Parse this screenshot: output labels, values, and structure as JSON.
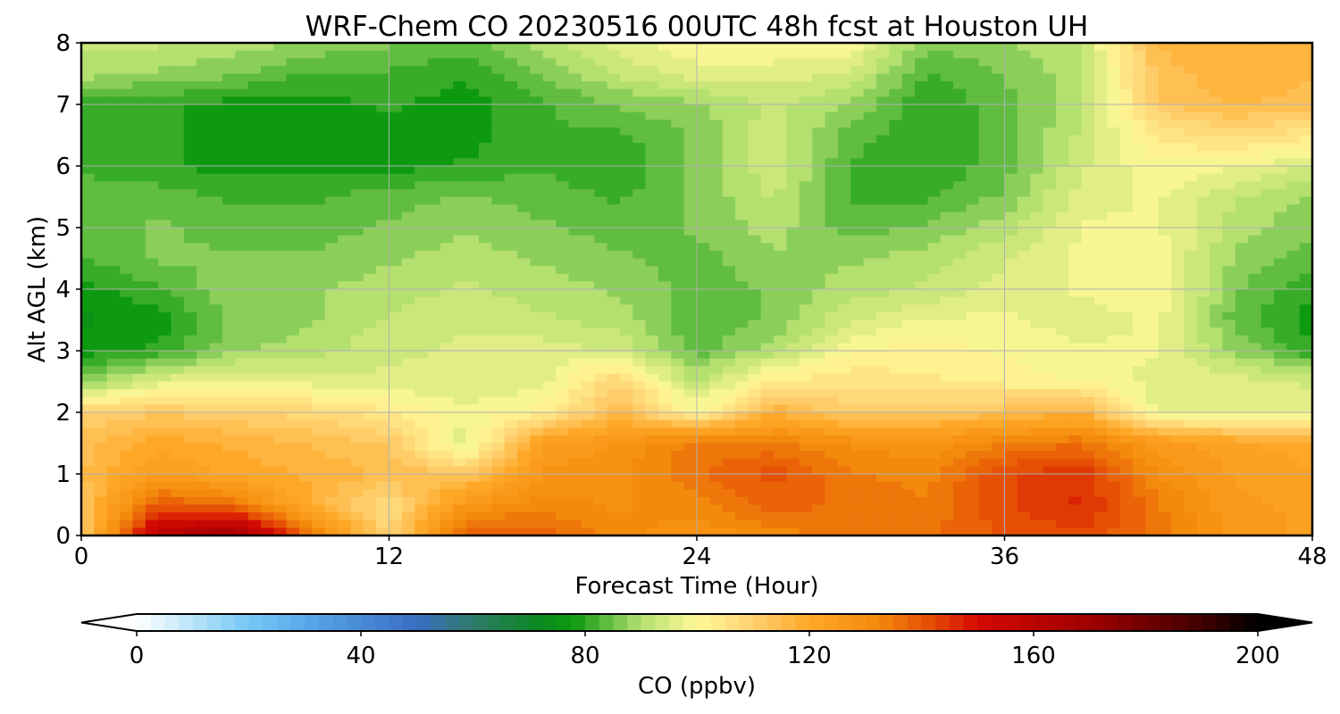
{
  "chart_data": {
    "type": "heatmap",
    "title": "WRF-Chem CO  20230516 00UTC 48h fcst at Houston UH",
    "xlabel": "Forecast Time (Hour)",
    "ylabel": "Alt AGL (km)",
    "xlim": [
      0,
      48
    ],
    "ylim": [
      0,
      8
    ],
    "x_ticks": [
      0,
      12,
      24,
      36,
      48
    ],
    "y_ticks": [
      0,
      1,
      2,
      3,
      4,
      5,
      6,
      7,
      8
    ],
    "grid": true,
    "colorbar": {
      "label": "CO  (ppbv)",
      "range": [
        0,
        200
      ],
      "ticks": [
        0,
        40,
        80,
        120,
        160,
        200
      ],
      "extend": "both",
      "stops": [
        {
          "value": 0,
          "color": "#ffffff"
        },
        {
          "value": 20,
          "color": "#74c8f5"
        },
        {
          "value": 30,
          "color": "#5aa8ea"
        },
        {
          "value": 50,
          "color": "#3a6ec4"
        },
        {
          "value": 60,
          "color": "#2e7a6a"
        },
        {
          "value": 72,
          "color": "#0a8a1e"
        },
        {
          "value": 78,
          "color": "#0e9a10"
        },
        {
          "value": 90,
          "color": "#b4e070"
        },
        {
          "value": 100,
          "color": "#fff898"
        },
        {
          "value": 110,
          "color": "#ffd070"
        },
        {
          "value": 120,
          "color": "#ffa828"
        },
        {
          "value": 132,
          "color": "#f48a0c"
        },
        {
          "value": 142,
          "color": "#e44a04"
        },
        {
          "value": 150,
          "color": "#d40a04"
        },
        {
          "value": 170,
          "color": "#a00000"
        },
        {
          "value": 190,
          "color": "#400000"
        },
        {
          "value": 200,
          "color": "#000000"
        }
      ]
    },
    "hours": [
      0,
      3,
      6,
      9,
      12,
      15,
      18,
      21,
      24,
      27,
      30,
      33,
      36,
      39,
      42,
      45,
      48
    ],
    "altitudes_km": [
      0,
      0.5,
      1,
      1.5,
      2,
      2.5,
      3,
      3.5,
      4,
      4.5,
      5,
      5.5,
      6,
      6.5,
      7,
      7.5,
      8
    ],
    "co_ppbv": [
      [
        110,
        160,
        170,
        135,
        108,
        140,
        138,
        132,
        128,
        132,
        135,
        136,
        140,
        142,
        135,
        126,
        124
      ],
      [
        112,
        140,
        135,
        118,
        106,
        128,
        132,
        130,
        132,
        138,
        136,
        134,
        142,
        146,
        134,
        125,
        124
      ],
      [
        115,
        125,
        120,
        118,
        115,
        112,
        128,
        130,
        136,
        141,
        134,
        132,
        142,
        145,
        130,
        124,
        122
      ],
      [
        114,
        120,
        118,
        115,
        112,
        95,
        124,
        128,
        135,
        134,
        130,
        128,
        134,
        136,
        126,
        122,
        120
      ],
      [
        110,
        112,
        110,
        108,
        104,
        98,
        102,
        115,
        100,
        118,
        110,
        112,
        114,
        118,
        96,
        95,
        96
      ],
      [
        86,
        96,
        98,
        96,
        95,
        95,
        96,
        110,
        90,
        104,
        106,
        104,
        102,
        100,
        96,
        96,
        94
      ],
      [
        78,
        80,
        88,
        90,
        94,
        95,
        96,
        94,
        84,
        90,
        100,
        102,
        100,
        98,
        98,
        88,
        80
      ],
      [
        76,
        78,
        86,
        88,
        92,
        94,
        92,
        90,
        83,
        86,
        94,
        98,
        98,
        96,
        98,
        84,
        78
      ],
      [
        78,
        82,
        88,
        88,
        90,
        92,
        90,
        88,
        84,
        86,
        90,
        92,
        96,
        98,
        100,
        86,
        80
      ],
      [
        82,
        86,
        86,
        86,
        88,
        90,
        88,
        86,
        84,
        88,
        88,
        90,
        94,
        98,
        99,
        88,
        84
      ],
      [
        84,
        86,
        84,
        84,
        86,
        88,
        86,
        84,
        86,
        90,
        84,
        86,
        90,
        98,
        98,
        90,
        86
      ],
      [
        84,
        84,
        82,
        82,
        84,
        86,
        84,
        82,
        86,
        92,
        82,
        82,
        86,
        96,
        98,
        92,
        88
      ],
      [
        82,
        80,
        78,
        78,
        78,
        80,
        82,
        80,
        86,
        94,
        82,
        80,
        84,
        94,
        100,
        98,
        94
      ],
      [
        82,
        80,
        78,
        78,
        78,
        78,
        82,
        82,
        86,
        94,
        84,
        80,
        84,
        92,
        104,
        108,
        104
      ],
      [
        80,
        80,
        78,
        78,
        80,
        78,
        82,
        86,
        88,
        92,
        88,
        80,
        84,
        90,
        112,
        116,
        114
      ],
      [
        90,
        88,
        86,
        82,
        82,
        80,
        86,
        92,
        96,
        96,
        94,
        82,
        86,
        90,
        114,
        118,
        116
      ],
      [
        92,
        92,
        90,
        88,
        86,
        84,
        90,
        96,
        100,
        100,
        100,
        86,
        88,
        92,
        116,
        118,
        118
      ]
    ]
  }
}
